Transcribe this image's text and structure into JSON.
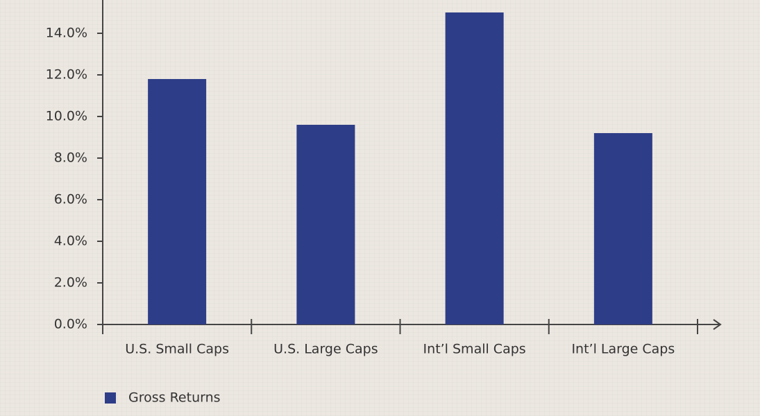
{
  "chart_data": {
    "type": "bar",
    "categories": [
      "U.S. Small Caps",
      "U.S. Large Caps",
      "Int’l Small Caps",
      "Int’l Large Caps"
    ],
    "series": [
      {
        "name": "Gross Returns",
        "color": "#2e3d87",
        "values": [
          11.8,
          9.6,
          15.0,
          9.2
        ]
      }
    ],
    "ylim": [
      0,
      15.6
    ],
    "yticks": [
      {
        "value": 0,
        "label": "0.0%"
      },
      {
        "value": 2,
        "label": "2.0%"
      },
      {
        "value": 4,
        "label": "4.0%"
      },
      {
        "value": 6,
        "label": "6.0%"
      },
      {
        "value": 8,
        "label": "8.0%"
      },
      {
        "value": 10,
        "label": "10.0%"
      },
      {
        "value": 12,
        "label": "12.0%"
      },
      {
        "value": 14,
        "label": "14.0%"
      }
    ],
    "grid": false,
    "legend": "bottom-left"
  }
}
